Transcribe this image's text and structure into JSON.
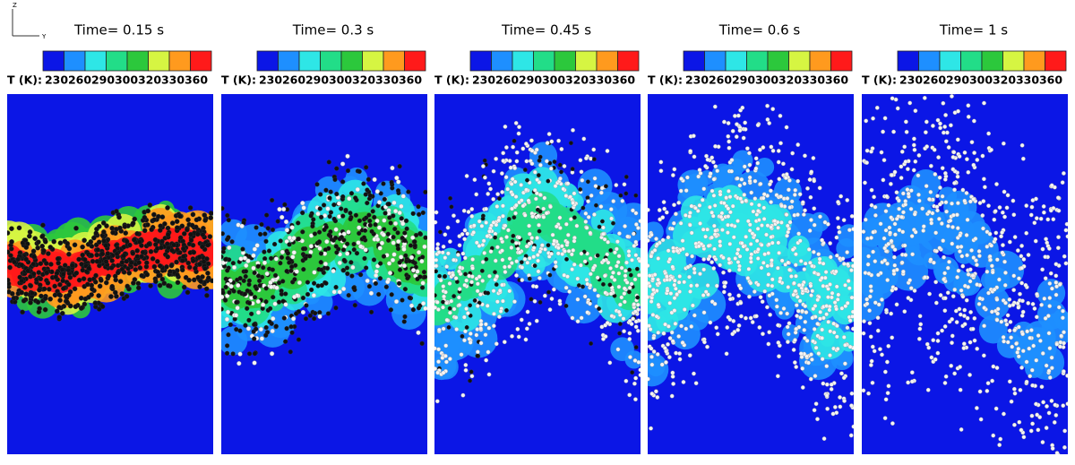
{
  "axes_triad": {
    "z": "Z",
    "y": "Y"
  },
  "colorbar": {
    "label": "T (K):",
    "ticks": [
      230,
      260,
      290,
      300,
      320,
      330,
      360
    ],
    "colors": [
      "#0b16e6",
      "#1e8fff",
      "#2ee6e6",
      "#22dd88",
      "#2cc83c",
      "#d6f542",
      "#ff9a1e",
      "#ff1a1a"
    ]
  },
  "panels": [
    {
      "title": "Time= 0.15 s"
    },
    {
      "title": "Time= 0.3 s"
    },
    {
      "title": "Time= 0.45 s"
    },
    {
      "title": "Time= 0.6 s"
    },
    {
      "title": "Time= 1 s"
    }
  ]
}
